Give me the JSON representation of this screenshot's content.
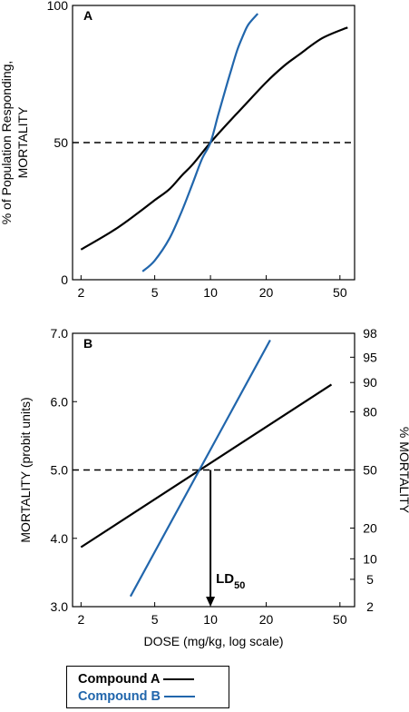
{
  "colors": {
    "compound_a": "#000000",
    "compound_b": "#2166ac"
  },
  "legend": {
    "compound_a": "Compound A",
    "compound_b": "Compound B"
  },
  "chart_data": [
    {
      "panel": "A",
      "type": "line",
      "xscale": "log",
      "xlim": [
        1.8,
        60
      ],
      "ylim": [
        0,
        100
      ],
      "xticks": [
        2,
        5,
        10,
        20,
        50
      ],
      "xtick_labels": [
        "2",
        "5",
        "10",
        "20",
        "50"
      ],
      "yticks": [
        0,
        50,
        100
      ],
      "ytick_labels": [
        "0",
        "50",
        "100"
      ],
      "ylabel_lines": [
        "% of Population Responding,",
        "MORTALITY"
      ],
      "xlabel": "",
      "reference_line": {
        "y": 50,
        "style": "dashed"
      },
      "series": [
        {
          "name": "Compound A",
          "color": "#000000",
          "x": [
            2,
            3,
            4,
            5,
            6,
            7,
            8,
            10,
            12,
            15,
            20,
            25,
            30,
            40,
            55
          ],
          "y": [
            11,
            18,
            24,
            29,
            33,
            38,
            42,
            50,
            56,
            63,
            72,
            78,
            82,
            88,
            92
          ]
        },
        {
          "name": "Compound B",
          "color": "#2166ac",
          "x": [
            4.3,
            5,
            6,
            7,
            8,
            9,
            10,
            11,
            12,
            13,
            14,
            15,
            16,
            18
          ],
          "y": [
            3,
            7,
            15,
            25,
            35,
            44,
            50,
            60,
            69,
            77,
            84,
            89,
            93,
            97
          ]
        }
      ],
      "annotations": []
    },
    {
      "panel": "B",
      "type": "line",
      "xscale": "log",
      "xlim": [
        1.8,
        60
      ],
      "ylim": [
        3.0,
        7.0
      ],
      "xticks": [
        2,
        5,
        10,
        20,
        50
      ],
      "xtick_labels": [
        "2",
        "5",
        "10",
        "20",
        "50"
      ],
      "yticks": [
        3.0,
        4.0,
        5.0,
        6.0,
        7.0
      ],
      "ytick_labels": [
        "3.0",
        "4.0",
        "5.0",
        "6.0",
        "7.0"
      ],
      "ylabel": "MORTALITY (probit units)",
      "xlabel": "DOSE (mg/kg, log scale)",
      "y2label": "% MORTALITY",
      "y2ticks": [
        {
          "probit": 3.0,
          "label": "2"
        },
        {
          "probit": 3.4,
          "label": "5"
        },
        {
          "probit": 3.7,
          "label": "10"
        },
        {
          "probit": 4.15,
          "label": "20"
        },
        {
          "probit": 5.0,
          "label": "50"
        },
        {
          "probit": 5.85,
          "label": "80"
        },
        {
          "probit": 6.28,
          "label": "90"
        },
        {
          "probit": 6.65,
          "label": "95"
        },
        {
          "probit": 7.0,
          "label": "98"
        }
      ],
      "reference_line": {
        "y": 5.0,
        "style": "dashed"
      },
      "series": [
        {
          "name": "Compound A",
          "color": "#000000",
          "x": [
            2,
            45
          ],
          "y": [
            3.87,
            6.25
          ]
        },
        {
          "name": "Compound B",
          "color": "#2166ac",
          "x": [
            3.7,
            21
          ],
          "y": [
            3.15,
            6.9
          ]
        }
      ],
      "annotations": [
        {
          "text": "LD",
          "subscript": "50",
          "x": 10,
          "from_y": 5.0,
          "to_y": 3.0
        }
      ]
    }
  ]
}
